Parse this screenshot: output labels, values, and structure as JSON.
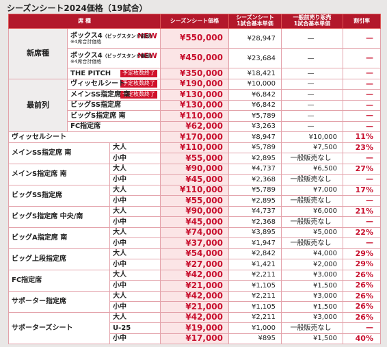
{
  "title": "シーズンシート2024価格（19試合）",
  "header": {
    "seat": "席 種",
    "price": "シーズンシート価格",
    "unit": [
      "シーズンシート",
      "1試合基本単価"
    ],
    "general": [
      "一般前売り販売",
      "1試合基本単価"
    ],
    "rate": "割引率"
  },
  "groups": [
    {
      "label": "新席種",
      "rows": [
        {
          "name": "ボックス4",
          "sub": "（ビッグスタンド前段）",
          "note": "※4席合計価格",
          "tag": "NEW",
          "price": "¥550,000",
          "unit": "¥28,947",
          "general": "—",
          "rate": "—"
        },
        {
          "name": "ボックス4",
          "sub": "（ビッグスタンド後段）",
          "note": "※4席合計価格",
          "tag": "NEW",
          "price": "¥450,000",
          "unit": "¥23,684",
          "general": "—",
          "rate": "—"
        },
        {
          "name": "THE PITCH",
          "badge": "予定枚数終了",
          "price": "¥350,000",
          "unit": "¥18,421",
          "general": "—",
          "rate": "—"
        }
      ]
    },
    {
      "label": "最前列",
      "rows": [
        {
          "name": "ヴィッセルシート",
          "badge": "予定枚数終了",
          "price": "¥190,000",
          "unit": "¥10,000",
          "general": "—",
          "rate": "—"
        },
        {
          "name": "メインSS指定席 南",
          "badge": "予定枚数終了",
          "price": "¥130,000",
          "unit": "¥6,842",
          "general": "—",
          "rate": "—"
        },
        {
          "name": "ビッグSS指定席",
          "price": "¥130,000",
          "unit": "¥6,842",
          "general": "—",
          "rate": "—"
        },
        {
          "name": "ビッグS指定席 南",
          "price": "¥110,000",
          "unit": "¥5,789",
          "general": "—",
          "rate": "—"
        },
        {
          "name": "FC指定席",
          "price": "¥62,000",
          "unit": "¥3,263",
          "general": "—",
          "rate": "—"
        }
      ]
    }
  ],
  "sections": [
    {
      "name": "ヴィッセルシート",
      "rows": [
        {
          "price": "¥170,000",
          "unit": "¥8,947",
          "general": "¥10,000",
          "rate": "11%"
        }
      ]
    },
    {
      "name": "メインSS指定席 南",
      "rows": [
        {
          "type": "大人",
          "price": "¥110,000",
          "unit": "¥5,789",
          "general": "¥7,500",
          "rate": "23%"
        },
        {
          "type": "小中",
          "price": "¥55,000",
          "unit": "¥2,895",
          "general": "一般販売なし",
          "rate": "—"
        }
      ]
    },
    {
      "name": "メインS指定席 南",
      "rows": [
        {
          "type": "大人",
          "price": "¥90,000",
          "unit": "¥4,737",
          "general": "¥6,500",
          "rate": "27%"
        },
        {
          "type": "小中",
          "price": "¥45,000",
          "unit": "¥2,368",
          "general": "一般販売なし",
          "rate": "—"
        }
      ]
    },
    {
      "name": "ビッグSS指定席",
      "rows": [
        {
          "type": "大人",
          "price": "¥110,000",
          "unit": "¥5,789",
          "general": "¥7,000",
          "rate": "17%"
        },
        {
          "type": "小中",
          "price": "¥55,000",
          "unit": "¥2,895",
          "general": "一般販売なし",
          "rate": "—"
        }
      ]
    },
    {
      "name": "ビッグS指定席 中央/南",
      "rows": [
        {
          "type": "大人",
          "price": "¥90,000",
          "unit": "¥4,737",
          "general": "¥6,000",
          "rate": "21%"
        },
        {
          "type": "小中",
          "price": "¥45,000",
          "unit": "¥2,368",
          "general": "一般販売なし",
          "rate": "—"
        }
      ]
    },
    {
      "name": "ビッグA指定席 南",
      "rows": [
        {
          "type": "大人",
          "price": "¥74,000",
          "unit": "¥3,895",
          "general": "¥5,000",
          "rate": "22%"
        },
        {
          "type": "小中",
          "price": "¥37,000",
          "unit": "¥1,947",
          "general": "一般販売なし",
          "rate": "—"
        }
      ]
    },
    {
      "name": "ビッグ上段指定席",
      "rows": [
        {
          "type": "大人",
          "price": "¥54,000",
          "unit": "¥2,842",
          "general": "¥4,000",
          "rate": "29%"
        },
        {
          "type": "小中",
          "price": "¥27,000",
          "unit": "¥1,421",
          "general": "¥2,000",
          "rate": "29%"
        }
      ]
    },
    {
      "name": "FC指定席",
      "rows": [
        {
          "type": "大人",
          "price": "¥42,000",
          "unit": "¥2,211",
          "general": "¥3,000",
          "rate": "26%"
        },
        {
          "type": "小中",
          "price": "¥21,000",
          "unit": "¥1,105",
          "general": "¥1,500",
          "rate": "26%"
        }
      ]
    },
    {
      "name": "サポーター指定席",
      "rows": [
        {
          "type": "大人",
          "price": "¥42,000",
          "unit": "¥2,211",
          "general": "¥3,000",
          "rate": "26%"
        },
        {
          "type": "小中",
          "price": "¥21,000",
          "unit": "¥1,105",
          "general": "¥1,500",
          "rate": "26%"
        }
      ]
    },
    {
      "name": "サポーターズシート",
      "rows": [
        {
          "type": "大人",
          "price": "¥42,000",
          "unit": "¥2,211",
          "general": "¥3,000",
          "rate": "26%"
        },
        {
          "type": "U-25",
          "price": "¥19,000",
          "unit": "¥1,000",
          "general": "一般販売なし",
          "rate": "—"
        },
        {
          "type": "小中",
          "price": "¥17,000",
          "unit": "¥895",
          "general": "¥1,500",
          "rate": "40%"
        }
      ]
    }
  ]
}
